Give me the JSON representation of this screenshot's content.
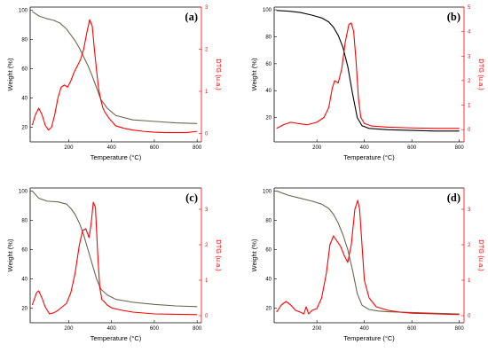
{
  "chart_data": [
    {
      "panel_label": "(a)",
      "type": "line",
      "xlabel": "Temperature (°C)",
      "ylabel": "Weight (%)",
      "y2label": "DTG (u.a.)",
      "xlim": [
        20,
        820
      ],
      "ylim": [
        10,
        102
      ],
      "y2lim": [
        -0.2,
        3.0
      ],
      "xticks": [
        200,
        400,
        600,
        800
      ],
      "yticks": [
        20,
        40,
        60,
        80,
        100
      ],
      "y2ticks": [
        0,
        1,
        2,
        3
      ],
      "colors": {
        "weight": "#6b6650",
        "dtg": "#ff0000",
        "y2axis": "#ff0000"
      },
      "series": [
        {
          "key": "weight",
          "axis": "left",
          "x": [
            30,
            60,
            100,
            130,
            160,
            190,
            210,
            230,
            250,
            270,
            290,
            310,
            330,
            350,
            380,
            420,
            500,
            600,
            700,
            800
          ],
          "y": [
            99,
            96,
            94,
            93,
            91,
            87,
            83,
            79,
            74,
            68,
            62,
            55,
            47,
            39,
            33,
            28,
            25,
            24,
            23,
            22.5
          ]
        },
        {
          "key": "dtg",
          "axis": "right",
          "x": [
            30,
            45,
            60,
            75,
            90,
            105,
            120,
            135,
            150,
            165,
            180,
            195,
            210,
            225,
            240,
            255,
            270,
            285,
            298,
            310,
            320,
            330,
            340,
            350,
            360,
            370,
            390,
            420,
            460,
            500,
            550,
            600,
            650,
            700,
            750,
            800
          ],
          "y": [
            0.2,
            0.45,
            0.6,
            0.45,
            0.2,
            0.08,
            0.15,
            0.45,
            0.85,
            1.1,
            1.15,
            1.1,
            1.25,
            1.45,
            1.6,
            1.75,
            2.0,
            2.4,
            2.7,
            2.55,
            2.0,
            1.5,
            1.05,
            0.8,
            0.6,
            0.5,
            0.35,
            0.18,
            0.12,
            0.08,
            0.05,
            0.03,
            0.02,
            0.02,
            0.02,
            0.05
          ]
        }
      ]
    },
    {
      "panel_label": "(b)",
      "type": "line",
      "xlabel": "Temperature (°C)",
      "ylabel": "Weight (%)",
      "y2label": "DTG (u.a.)",
      "xlim": [
        20,
        820
      ],
      "ylim": [
        2,
        102
      ],
      "y2lim": [
        -0.5,
        5.0
      ],
      "xticks": [
        200,
        400,
        600,
        800
      ],
      "yticks": [
        20,
        40,
        60,
        80,
        100
      ],
      "y2ticks": [
        0,
        1,
        2,
        3,
        4,
        5
      ],
      "colors": {
        "weight": "#000000",
        "dtg": "#ff0000",
        "y2axis": "#ff0000"
      },
      "series": [
        {
          "key": "weight",
          "axis": "left",
          "x": [
            30,
            80,
            130,
            180,
            220,
            250,
            270,
            290,
            310,
            330,
            350,
            370,
            390,
            420,
            500,
            600,
            700,
            800
          ],
          "y": [
            99.5,
            99,
            98,
            96,
            94,
            91,
            87,
            81,
            72,
            58,
            38,
            20,
            14,
            12,
            11,
            10.5,
            10,
            10
          ]
        },
        {
          "key": "dtg",
          "axis": "right",
          "x": [
            30,
            60,
            90,
            120,
            160,
            200,
            230,
            250,
            265,
            275,
            290,
            305,
            320,
            335,
            345,
            355,
            365,
            375,
            385,
            400,
            430,
            500,
            600,
            700,
            800
          ],
          "y": [
            0.05,
            0.2,
            0.3,
            0.25,
            0.2,
            0.3,
            0.5,
            0.9,
            1.7,
            2.0,
            1.9,
            2.5,
            3.6,
            4.3,
            4.35,
            4.0,
            2.8,
            1.3,
            0.5,
            0.25,
            0.15,
            0.1,
            0.07,
            0.05,
            0.05
          ]
        }
      ]
    },
    {
      "panel_label": "(c)",
      "type": "line",
      "xlabel": "Temperature (°C)",
      "ylabel": "Weight (%)",
      "y2label": "DTG (u.a.)",
      "xlim": [
        20,
        820
      ],
      "ylim": [
        10,
        102
      ],
      "y2lim": [
        -0.2,
        3.6
      ],
      "xticks": [
        200,
        400,
        600,
        800
      ],
      "yticks": [
        20,
        40,
        60,
        80,
        100
      ],
      "y2ticks": [
        0,
        1,
        2,
        3
      ],
      "colors": {
        "weight": "#6b6650",
        "dtg": "#ff0000",
        "y2axis": "#ff0000"
      },
      "series": [
        {
          "key": "weight",
          "axis": "left",
          "x": [
            30,
            60,
            100,
            150,
            190,
            210,
            230,
            250,
            270,
            290,
            310,
            330,
            350,
            380,
            420,
            500,
            600,
            700,
            800
          ],
          "y": [
            100,
            95,
            93,
            92.5,
            91,
            88,
            84,
            78,
            70,
            60,
            50,
            40,
            33,
            29,
            26,
            24,
            22.5,
            21.5,
            21
          ]
        },
        {
          "key": "dtg",
          "axis": "right",
          "x": [
            30,
            50,
            60,
            75,
            90,
            110,
            130,
            150,
            170,
            190,
            210,
            230,
            250,
            265,
            280,
            295,
            305,
            315,
            325,
            335,
            345,
            355,
            365,
            380,
            400,
            450,
            500,
            600,
            700,
            800
          ],
          "y": [
            0.3,
            0.65,
            0.7,
            0.5,
            0.25,
            0.05,
            0.08,
            0.15,
            0.25,
            0.35,
            0.65,
            1.2,
            2.0,
            2.4,
            2.45,
            2.2,
            2.6,
            3.2,
            3.05,
            1.8,
            0.8,
            0.45,
            0.4,
            0.3,
            0.22,
            0.15,
            0.1,
            0.05,
            0.04,
            0.03
          ]
        }
      ]
    },
    {
      "panel_label": "(d)",
      "type": "line",
      "xlabel": "Temperature (°C)",
      "ylabel": "Weight (%)",
      "y2label": "DTG (u.a.)",
      "xlim": [
        20,
        820
      ],
      "ylim": [
        10,
        102
      ],
      "y2lim": [
        -0.2,
        3.6
      ],
      "xticks": [
        200,
        400,
        600,
        800
      ],
      "yticks": [
        20,
        40,
        60,
        80,
        100
      ],
      "y2ticks": [
        0,
        1,
        2,
        3
      ],
      "colors": {
        "weight": "#6b6650",
        "dtg": "#ff0000",
        "y2axis": "#ff0000"
      },
      "series": [
        {
          "key": "weight",
          "axis": "left",
          "x": [
            30,
            80,
            130,
            180,
            220,
            250,
            270,
            290,
            310,
            330,
            350,
            370,
            390,
            420,
            460,
            500,
            600,
            700,
            800
          ],
          "y": [
            100,
            97,
            95,
            93,
            91,
            88,
            84,
            78,
            70,
            60,
            46,
            30,
            22,
            19,
            18,
            17.5,
            17,
            16.5,
            16
          ]
        },
        {
          "key": "dtg",
          "axis": "right",
          "x": [
            30,
            50,
            70,
            90,
            110,
            130,
            145,
            155,
            165,
            180,
            200,
            220,
            240,
            255,
            270,
            285,
            300,
            315,
            330,
            345,
            360,
            372,
            380,
            390,
            400,
            420,
            450,
            500,
            550,
            600,
            700,
            800
          ],
          "y": [
            0.1,
            0.3,
            0.4,
            0.3,
            0.15,
            0.1,
            0.05,
            0.25,
            0.05,
            0.15,
            0.2,
            0.5,
            1.2,
            2.0,
            2.25,
            2.1,
            1.95,
            1.7,
            1.5,
            2.0,
            3.0,
            3.25,
            3.0,
            2.0,
            1.0,
            0.5,
            0.25,
            0.15,
            0.1,
            0.07,
            0.05,
            0.03
          ]
        }
      ]
    }
  ]
}
